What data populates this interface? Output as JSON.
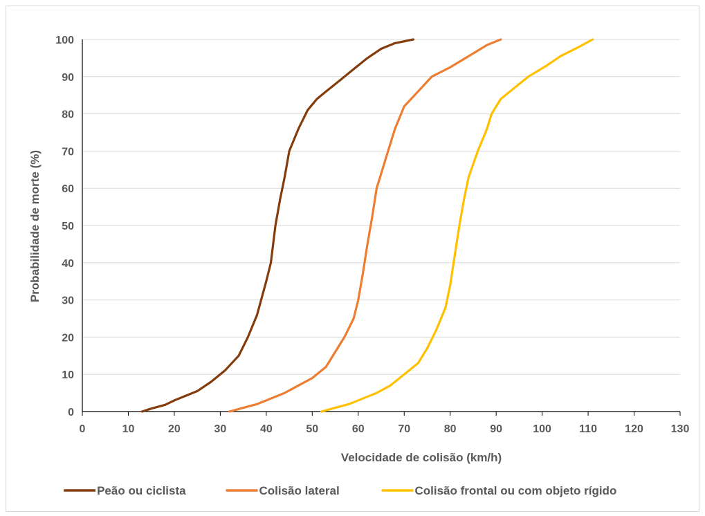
{
  "chart_data": {
    "type": "line",
    "title": "",
    "xlabel": "Velocidade de colisão (km/h)",
    "ylabel": "Probabilidade de morte (%)",
    "xlim": [
      0,
      130
    ],
    "ylim": [
      0,
      100
    ],
    "xticks": [
      0,
      10,
      20,
      30,
      40,
      50,
      60,
      70,
      80,
      90,
      100,
      110,
      120,
      130
    ],
    "yticks": [
      0,
      10,
      20,
      30,
      40,
      50,
      60,
      70,
      80,
      90,
      100
    ],
    "grid": "horizontal",
    "legend_position": "bottom",
    "series": [
      {
        "name": "Peão ou ciclista",
        "color": "#843C0C",
        "points": [
          [
            13,
            0
          ],
          [
            15,
            0.8
          ],
          [
            18,
            1.8
          ],
          [
            20,
            3
          ],
          [
            22,
            4
          ],
          [
            25,
            5.5
          ],
          [
            28,
            8
          ],
          [
            31,
            11
          ],
          [
            34,
            15
          ],
          [
            36,
            20
          ],
          [
            38,
            26
          ],
          [
            40,
            35
          ],
          [
            41,
            40
          ],
          [
            42,
            50
          ],
          [
            43,
            57
          ],
          [
            44,
            63
          ],
          [
            45,
            70
          ],
          [
            47,
            76
          ],
          [
            49,
            81
          ],
          [
            51,
            84
          ],
          [
            53,
            86
          ],
          [
            56,
            89
          ],
          [
            59,
            92
          ],
          [
            62,
            95
          ],
          [
            65,
            97.5
          ],
          [
            68,
            99
          ],
          [
            72,
            100
          ]
        ]
      },
      {
        "name": "Colisão lateral",
        "color": "#ED7D31",
        "points": [
          [
            32,
            0
          ],
          [
            35,
            1
          ],
          [
            38,
            2
          ],
          [
            41,
            3.5
          ],
          [
            44,
            5
          ],
          [
            47,
            7
          ],
          [
            50,
            9
          ],
          [
            53,
            12
          ],
          [
            55,
            16
          ],
          [
            57,
            20
          ],
          [
            59,
            25
          ],
          [
            60,
            30
          ],
          [
            61,
            37
          ],
          [
            62,
            45
          ],
          [
            63,
            52
          ],
          [
            64,
            60
          ],
          [
            66,
            68
          ],
          [
            68,
            76
          ],
          [
            70,
            82
          ],
          [
            73,
            86
          ],
          [
            76,
            90
          ],
          [
            80,
            92.5
          ],
          [
            84,
            95.5
          ],
          [
            88,
            98.5
          ],
          [
            91,
            100
          ]
        ]
      },
      {
        "name": "Colisão frontal ou com objeto rígido",
        "color": "#FFC000",
        "points": [
          [
            52,
            0
          ],
          [
            55,
            1
          ],
          [
            58,
            2
          ],
          [
            61,
            3.5
          ],
          [
            64,
            5
          ],
          [
            67,
            7
          ],
          [
            70,
            10
          ],
          [
            73,
            13
          ],
          [
            75,
            17
          ],
          [
            77,
            22
          ],
          [
            79,
            28
          ],
          [
            80,
            34
          ],
          [
            81,
            42
          ],
          [
            82,
            50
          ],
          [
            83,
            57
          ],
          [
            84,
            63
          ],
          [
            86,
            70
          ],
          [
            88,
            76
          ],
          [
            89,
            80
          ],
          [
            91,
            84
          ],
          [
            94,
            87
          ],
          [
            97,
            90
          ],
          [
            101,
            93
          ],
          [
            104,
            95.5
          ],
          [
            108,
            98
          ],
          [
            111,
            100
          ]
        ]
      }
    ]
  }
}
